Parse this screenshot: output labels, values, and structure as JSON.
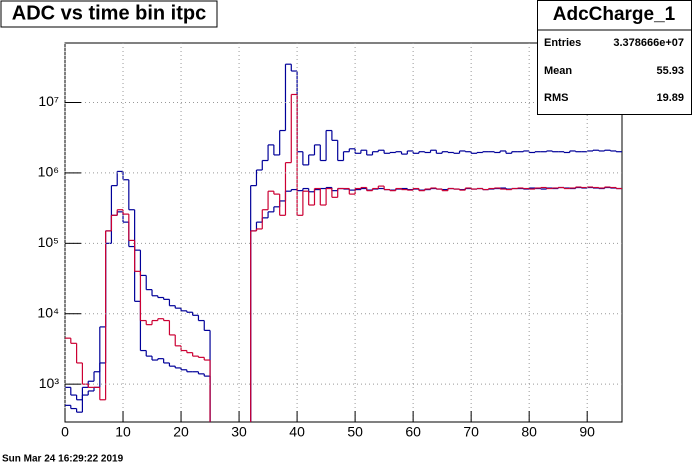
{
  "chart_data": {
    "type": "histogram",
    "title": "ADC vs time bin itpc",
    "timestamp": "Sun Mar 24 16:29:22 2019",
    "stats": {
      "title": "AdcCharge_1",
      "rows": [
        [
          "Entries",
          "3.378666e+07"
        ],
        [
          "Mean",
          "55.93"
        ],
        [
          "RMS",
          "19.89"
        ]
      ]
    },
    "bins": [
      0,
      1,
      2,
      3,
      4,
      5,
      6,
      7,
      8,
      9,
      10,
      11,
      12,
      13,
      14,
      15,
      16,
      17,
      18,
      19,
      20,
      21,
      22,
      23,
      24,
      25,
      26,
      27,
      28,
      29,
      30,
      31,
      32,
      33,
      34,
      35,
      36,
      37,
      38,
      39,
      40,
      41,
      42,
      43,
      44,
      45,
      46,
      47,
      48,
      49,
      50,
      51,
      52,
      53,
      54,
      55,
      56,
      57,
      58,
      59,
      60,
      61,
      62,
      63,
      64,
      65,
      66,
      67,
      68,
      69,
      70,
      71,
      72,
      73,
      74,
      75,
      76,
      77,
      78,
      79,
      80,
      81,
      82,
      83,
      84,
      85,
      86,
      87,
      88,
      89,
      90,
      91,
      92,
      93,
      94,
      95,
      96
    ],
    "xlim": [
      0,
      96
    ],
    "xticks": [
      0,
      10,
      20,
      30,
      40,
      50,
      60,
      70,
      80,
      90
    ],
    "ylim": [
      290,
      70000000
    ],
    "log_y": true,
    "grid": true,
    "yticks": [
      {
        "value": 1000,
        "label": "10³"
      },
      {
        "value": 10000,
        "label": "10⁴"
      },
      {
        "value": 100000,
        "label": "10⁵"
      },
      {
        "value": 1000000,
        "label": "10⁶"
      },
      {
        "value": 10000000,
        "label": "10⁷"
      }
    ],
    "series": [
      {
        "color": "#000099",
        "values": [
          900,
          700,
          600,
          900,
          1100,
          1500,
          6500,
          150000,
          660000,
          1050000,
          800000,
          300000,
          80000,
          35000,
          22000,
          18000,
          17000,
          16000,
          13000,
          12000,
          11000,
          10500,
          9500,
          8000,
          5800,
          0,
          0,
          0,
          0,
          0,
          0,
          0,
          660000,
          1100000,
          1500000,
          2500000,
          1800000,
          4000000,
          35000000,
          28000000,
          2000000,
          1300000,
          1800000,
          2500000,
          1500000,
          4000000,
          2900000,
          1500000,
          2000000,
          2200000,
          1900000,
          2100000,
          1800000,
          2000000,
          2100000,
          1900000,
          1950000,
          2000000,
          1850000,
          2050000,
          1900000,
          2000000,
          1950000,
          2100000,
          1900000,
          2000000,
          1950000,
          1900000,
          2050000,
          2000000,
          1900000,
          1950000,
          2000000,
          2000000,
          1950000,
          2050000,
          1900000,
          2000000,
          2000000,
          2050000,
          1950000,
          2000000,
          2000000,
          2050000,
          2000000,
          2000000,
          1950000,
          2050000,
          2000000,
          2000000,
          2050000,
          2100000,
          2050000,
          2100000,
          2050000,
          2000000
        ]
      },
      {
        "color": "#000099",
        "values": [
          500,
          450,
          400,
          700,
          800,
          900,
          2000,
          100000,
          250000,
          280000,
          200000,
          90000,
          15000,
          3000,
          2500,
          2200,
          2300,
          2000,
          1800,
          1700,
          1600,
          1500,
          1500,
          1400,
          1300,
          0,
          0,
          0,
          0,
          0,
          0,
          0,
          150000,
          200000,
          230000,
          280000,
          330000,
          400000,
          550000,
          580000,
          560000,
          600000,
          540000,
          580000,
          600000,
          620000,
          560000,
          600000,
          590000,
          570000,
          580000,
          600000,
          570000,
          590000,
          600000,
          580000,
          570000,
          590000,
          600000,
          580000,
          590000,
          570000,
          580000,
          600000,
          590000,
          580000,
          600000,
          590000,
          580000,
          600000,
          590000,
          600000,
          580000,
          590000,
          600000,
          610000,
          590000,
          600000,
          600000,
          590000,
          610000,
          600000,
          590000,
          610000,
          600000,
          620000,
          610000,
          600000,
          620000,
          610000,
          620000,
          610000,
          600000,
          620000,
          610000,
          600000
        ]
      },
      {
        "color": "#cc0033",
        "values": [
          4500,
          3800,
          2000,
          1000,
          900,
          900,
          600,
          150000,
          250000,
          300000,
          260000,
          110000,
          40000,
          8000,
          7000,
          8000,
          8500,
          8000,
          5000,
          3500,
          3000,
          2800,
          2500,
          2400,
          2200,
          0,
          0,
          0,
          0,
          0,
          0,
          0,
          150000,
          160000,
          300000,
          550000,
          500000,
          250000,
          1400000,
          13000000,
          250000,
          550000,
          350000,
          600000,
          350000,
          600000,
          450000,
          600000,
          600000,
          500000,
          600000,
          620000,
          560000,
          600000,
          650000,
          580000,
          560000,
          600000,
          580000,
          570000,
          600000,
          560000,
          590000,
          610000,
          590000,
          560000,
          600000,
          590000,
          570000,
          610000,
          590000,
          600000,
          580000,
          600000,
          610000,
          590000,
          580000,
          600000,
          610000,
          600000,
          590000,
          610000,
          620000,
          600000,
          610000,
          620000,
          600000,
          610000,
          630000,
          620000,
          630000,
          620000,
          610000,
          630000,
          620000,
          600000
        ]
      }
    ]
  }
}
